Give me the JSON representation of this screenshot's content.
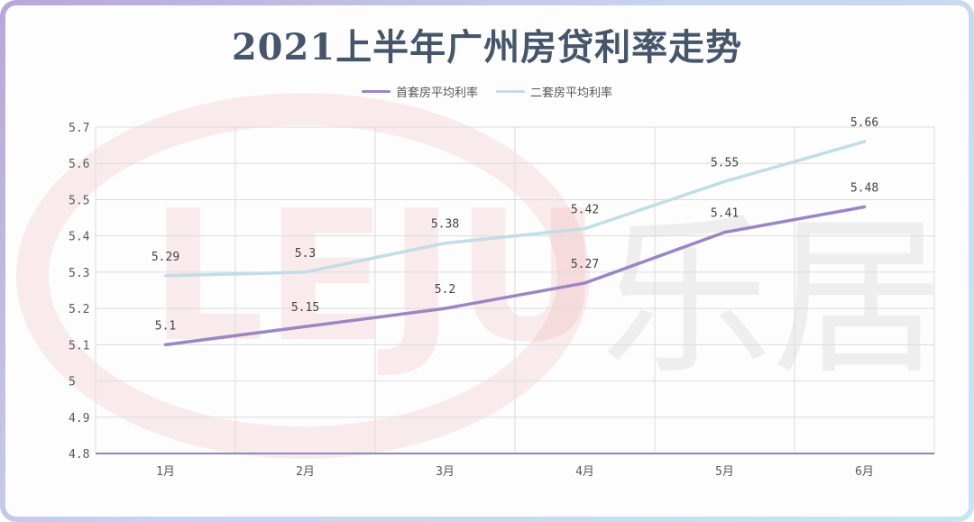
{
  "chart_data": {
    "type": "line",
    "title": "2021上半年广州房贷利率走势",
    "categories": [
      "1月",
      "2月",
      "3月",
      "4月",
      "5月",
      "6月"
    ],
    "series": [
      {
        "name": "首套房平均利率",
        "color": "#9b86c4",
        "values": [
          5.1,
          5.15,
          5.2,
          5.27,
          5.41,
          5.48
        ],
        "labels": [
          "5.1",
          "5.15",
          "5.2",
          "5.27",
          "5.41",
          "5.48"
        ]
      },
      {
        "name": "二套房平均利率",
        "color": "#c2dde6",
        "values": [
          5.29,
          5.3,
          5.38,
          5.42,
          5.55,
          5.66
        ],
        "labels": [
          "5.29",
          "5.3",
          "5.38",
          "5.42",
          "5.55",
          "5.66"
        ]
      }
    ],
    "ylim": [
      4.8,
      5.7
    ],
    "yticks": [
      "4.8",
      "4.9",
      "5",
      "5.1",
      "5.2",
      "5.3",
      "5.4",
      "5.5",
      "5.6",
      "5.7"
    ],
    "grid": true,
    "legend_position": "top"
  },
  "watermark": {
    "text": "乐居"
  }
}
